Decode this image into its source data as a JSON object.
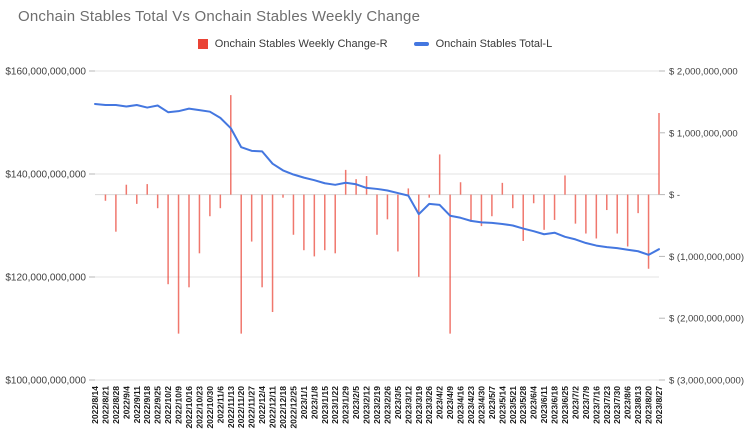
{
  "chart_data": {
    "type": "combo-bar-line",
    "title": "Onchain Stables Total Vs Onchain Stables Weekly Change",
    "legend_position": "top-center",
    "grid": true,
    "categories": [
      "2022/8/14",
      "2022/8/21",
      "2022/8/28",
      "2022/9/4",
      "2022/9/11",
      "2022/9/18",
      "2022/9/25",
      "2022/10/2",
      "2022/10/9",
      "2022/10/16",
      "2022/10/23",
      "2022/10/30",
      "2022/11/6",
      "2022/11/13",
      "2022/11/20",
      "2022/11/27",
      "2022/12/4",
      "2022/12/11",
      "2022/12/18",
      "2022/12/25",
      "2023/1/1",
      "2023/1/8",
      "2023/1/15",
      "2023/1/22",
      "2023/1/29",
      "2023/2/5",
      "2023/2/12",
      "2023/2/19",
      "2023/2/26",
      "2023/3/5",
      "2023/3/12",
      "2023/3/19",
      "2023/3/26",
      "2023/4/2",
      "2023/4/9",
      "2023/4/16",
      "2023/4/23",
      "2023/4/30",
      "2023/5/7",
      "2023/5/14",
      "2023/5/21",
      "2023/5/28",
      "2023/6/4",
      "2023/6/11",
      "2023/6/18",
      "2023/6/25",
      "2023/7/2",
      "2023/7/9",
      "2023/7/16",
      "2023/7/23",
      "2023/7/30",
      "2023/8/6",
      "2023/8/13",
      "2023/8/20",
      "2023/8/27"
    ],
    "series": [
      {
        "name": "Onchain Stables Weekly Change-R",
        "type": "bar",
        "axis": "right",
        "color": "#ea4335",
        "unit": "USD billions",
        "values": [
          0,
          -0.1,
          -0.6,
          0.16,
          -0.15,
          0.17,
          -0.22,
          -1.45,
          -2.25,
          -1.5,
          -0.95,
          -0.35,
          -0.22,
          1.61,
          -2.25,
          -0.76,
          -1.5,
          -1.9,
          -0.05,
          -0.65,
          -0.9,
          -1.0,
          -0.9,
          -0.95,
          0.4,
          0.25,
          0.3,
          -0.65,
          -0.4,
          -0.92,
          0.1,
          -1.33,
          -0.05,
          0.65,
          -2.25,
          0.2,
          -0.44,
          -0.51,
          -0.35,
          0.19,
          -0.22,
          -0.75,
          -0.14,
          -0.57,
          -0.41,
          0.31,
          -0.47,
          -0.63,
          -0.71,
          -0.25,
          -0.63,
          -0.84,
          -0.3,
          -1.2,
          1.32
        ]
      },
      {
        "name": "Onchain Stables Total-L",
        "type": "line",
        "axis": "left",
        "color": "#4477e0",
        "unit": "USD billions",
        "values": [
          153.6,
          153.4,
          153.4,
          153.1,
          153.4,
          152.9,
          153.3,
          152.0,
          152.2,
          152.7,
          152.4,
          152.1,
          150.9,
          148.9,
          145.2,
          144.5,
          144.4,
          142.0,
          140.7,
          139.9,
          139.3,
          138.8,
          138.2,
          137.9,
          138.3,
          138.0,
          137.3,
          137.1,
          136.8,
          136.3,
          135.8,
          132.2,
          134.2,
          134.0,
          131.9,
          131.5,
          130.9,
          130.6,
          130.5,
          130.3,
          130.0,
          129.4,
          128.9,
          128.3,
          128.6,
          127.8,
          127.3,
          126.6,
          126.1,
          125.8,
          125.6,
          125.3,
          125.0,
          124.3,
          125.4
        ]
      }
    ],
    "left_axis": {
      "min": 100,
      "max": 160,
      "tick_values": [
        160,
        140,
        120,
        100
      ],
      "tick_labels": [
        "$160,000,000,000",
        "$140,000,000,000",
        "$120,000,000,000",
        "$100,000,000,000"
      ]
    },
    "right_axis": {
      "min": -3,
      "max": 2,
      "tick_values": [
        2,
        1,
        0,
        -1,
        -2,
        -3
      ],
      "tick_labels": [
        "$ 2,000,000,000",
        "$ 1,000,000,000",
        "$ -",
        "$ (1,000,000,000)",
        "$ (2,000,000,000)",
        "$ (3,000,000,000)"
      ]
    },
    "colors": {
      "grid": "#e3e3e3",
      "zero_line": "#d8d8d8",
      "axis_tick": "#b7b7b7",
      "axis_label": "#404040",
      "x_label": "#1a1a1a",
      "title": "#6e6e6e"
    }
  }
}
